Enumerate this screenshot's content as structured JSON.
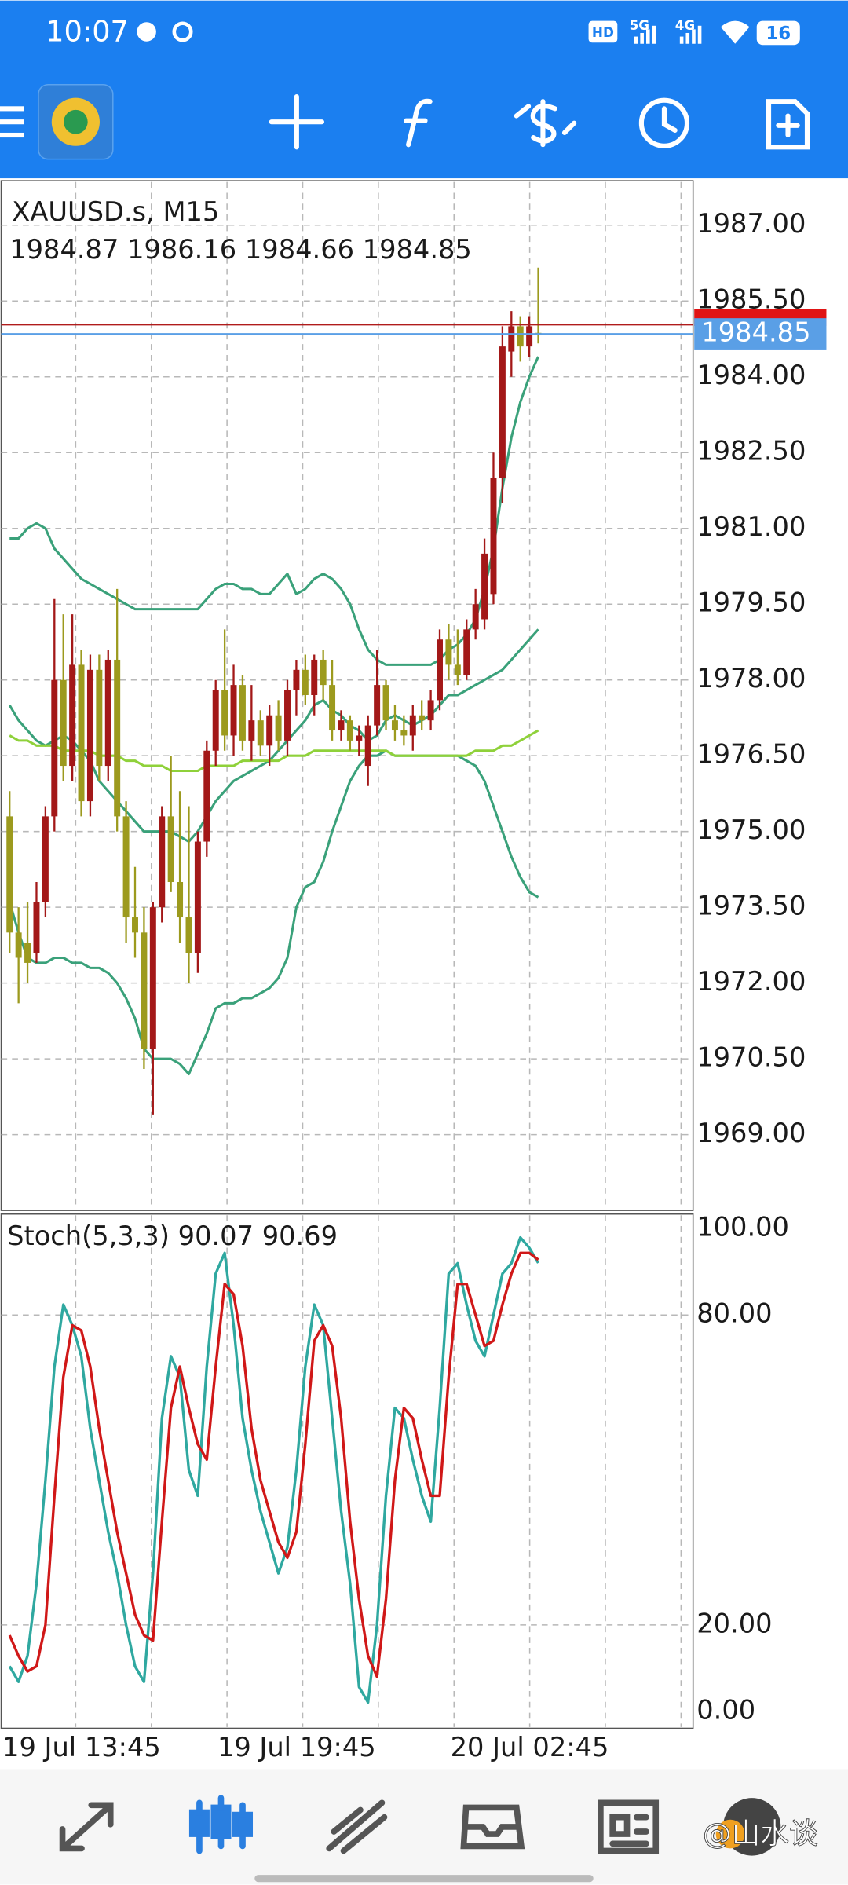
{
  "status_bar": {
    "time": "10:07",
    "hd": "HD",
    "network": [
      "5G",
      "4G"
    ],
    "battery": "16"
  },
  "chart_data": [
    {
      "type": "candlestick",
      "title": "XAUUSD.s, M15",
      "categories": [
        "19 Jul 13:45",
        null,
        null,
        null,
        null,
        null,
        null,
        null,
        null,
        null,
        null,
        null,
        null,
        null,
        null,
        null,
        null,
        null,
        null,
        null,
        null,
        null,
        null,
        null,
        "19 Jul 19:45",
        null,
        null,
        null,
        null,
        null,
        null,
        null,
        null,
        null,
        null,
        null,
        null,
        null,
        null,
        null,
        null,
        null,
        null,
        null,
        null,
        null,
        null,
        null,
        null,
        null,
        "20 Jul 02:45",
        null,
        null,
        null,
        null,
        null,
        null,
        null,
        null,
        null
      ],
      "open": [
        1975.3,
        1973.0,
        1972.8,
        1972.6,
        1973.6,
        1975.3,
        1978.0,
        1976.3,
        1978.3,
        1975.6,
        1978.2,
        1976.3,
        1978.4,
        1975.3,
        1973.3,
        1973.0,
        1970.7,
        1973.5,
        1975.3,
        1974.0,
        1973.3,
        1972.6,
        1974.8,
        1976.6,
        1977.8,
        1976.9,
        1977.9,
        1976.8,
        1977.2,
        1976.7,
        1977.3,
        1976.8,
        1977.8,
        1978.2,
        1977.7,
        1978.4,
        1977.9,
        1977.0,
        1977.2,
        1976.8,
        1976.3,
        1977.1,
        1977.9,
        1977.2,
        1977.0,
        1976.9,
        1977.3,
        1977.2,
        1977.6,
        1978.8,
        1978.3,
        1978.1,
        1979.0,
        1979.2,
        1979.7,
        1982.0,
        1984.5,
        1985.0,
        1984.6,
        1984.87
      ],
      "high": [
        1975.8,
        1973.5,
        1973.6,
        1974.0,
        1975.5,
        1979.6,
        1979.3,
        1979.3,
        1978.6,
        1978.5,
        1978.5,
        1978.6,
        1979.8,
        1975.6,
        1974.3,
        1973.5,
        1973.6,
        1975.5,
        1976.5,
        1975.8,
        1975.5,
        1975.0,
        1976.8,
        1978.0,
        1979.0,
        1978.3,
        1978.1,
        1977.9,
        1977.4,
        1977.5,
        1977.6,
        1978.0,
        1978.4,
        1978.5,
        1978.5,
        1978.6,
        1978.4,
        1977.4,
        1977.3,
        1977.1,
        1977.3,
        1978.6,
        1978.0,
        1977.5,
        1977.3,
        1977.5,
        1977.6,
        1977.8,
        1979.0,
        1979.1,
        1979.0,
        1979.2,
        1979.8,
        1980.8,
        1982.5,
        1985.0,
        1985.3,
        1985.2,
        1985.2,
        1986.16
      ],
      "low": [
        1972.6,
        1971.6,
        1972.0,
        1972.4,
        1973.3,
        1975.0,
        1976.0,
        1976.0,
        1975.3,
        1975.3,
        1976.0,
        1976.0,
        1975.0,
        1972.8,
        1972.5,
        1970.3,
        1969.4,
        1973.2,
        1973.8,
        1972.8,
        1972.0,
        1972.2,
        1974.5,
        1976.3,
        1976.6,
        1976.5,
        1976.6,
        1976.4,
        1976.5,
        1976.3,
        1976.6,
        1976.5,
        1977.3,
        1977.5,
        1977.3,
        1977.6,
        1976.8,
        1976.8,
        1976.6,
        1976.5,
        1975.9,
        1976.9,
        1977.0,
        1976.8,
        1976.7,
        1976.6,
        1977.0,
        1977.0,
        1977.4,
        1978.0,
        1977.9,
        1978.0,
        1978.8,
        1979.0,
        1979.5,
        1981.5,
        1984.0,
        1984.3,
        1984.4,
        1984.66
      ],
      "close": [
        1973.0,
        1972.5,
        1972.4,
        1973.6,
        1975.3,
        1978.0,
        1976.3,
        1978.3,
        1975.6,
        1978.2,
        1976.3,
        1978.4,
        1975.3,
        1973.3,
        1973.0,
        1970.7,
        1973.5,
        1975.3,
        1974.0,
        1973.3,
        1972.6,
        1974.8,
        1976.6,
        1977.8,
        1976.9,
        1977.9,
        1976.8,
        1977.2,
        1976.7,
        1977.3,
        1976.8,
        1977.8,
        1978.2,
        1977.7,
        1978.4,
        1977.9,
        1977.0,
        1977.2,
        1976.8,
        1976.9,
        1977.1,
        1977.9,
        1977.2,
        1977.0,
        1976.9,
        1977.3,
        1977.2,
        1977.6,
        1978.8,
        1978.3,
        1978.1,
        1979.0,
        1979.5,
        1980.5,
        1982.0,
        1984.6,
        1985.0,
        1984.6,
        1985.0,
        1984.85
      ],
      "up_color": "#a31818",
      "down_color": "#9c9a1e",
      "series": [
        {
          "color": "#3aa17a",
          "values": [
            1980.8,
            1980.8,
            1981.0,
            1981.1,
            1981.0,
            1980.6,
            1980.4,
            1980.2,
            1980.0,
            1979.9,
            1979.8,
            1979.7,
            1979.6,
            1979.5,
            1979.4,
            1979.4,
            1979.4,
            1979.4,
            1979.4,
            1979.4,
            1979.4,
            1979.4,
            1979.6,
            1979.8,
            1979.9,
            1979.9,
            1979.8,
            1979.8,
            1979.7,
            1979.7,
            1979.9,
            1980.1,
            1979.7,
            1979.8,
            1980.0,
            1980.1,
            1980.0,
            1979.8,
            1979.5,
            1979.0,
            1978.6,
            1978.4,
            1978.3,
            1978.3,
            1978.3,
            1978.3,
            1978.3,
            1978.3,
            1978.4,
            1978.6,
            1978.7,
            1978.9,
            1979.2,
            1979.8,
            1980.6,
            1981.8,
            1982.8,
            1983.5,
            1984.0,
            1984.4
          ]
        },
        {
          "color": "#3aa17a",
          "values": [
            1977.5,
            1977.2,
            1977.0,
            1976.8,
            1976.7,
            1976.8,
            1976.9,
            1976.8,
            1976.6,
            1976.4,
            1976.0,
            1975.8,
            1975.6,
            1975.4,
            1975.2,
            1975.0,
            1975.0,
            1975.0,
            1975.0,
            1974.9,
            1974.8,
            1975.0,
            1975.3,
            1975.6,
            1975.8,
            1976.0,
            1976.1,
            1976.2,
            1976.3,
            1976.4,
            1976.6,
            1976.8,
            1977.0,
            1977.2,
            1977.5,
            1977.6,
            1977.4,
            1977.3,
            1977.1,
            1977.0,
            1976.8,
            1976.9,
            1977.2,
            1977.3,
            1977.2,
            1977.1,
            1977.2,
            1977.3,
            1977.5,
            1977.7,
            1977.7,
            1977.8,
            1977.9,
            1978.0,
            1978.1,
            1978.2,
            1978.4,
            1978.6,
            1978.8,
            1979.0
          ]
        },
        {
          "color": "#3aa17a",
          "values": [
            1973.6,
            1973.0,
            1972.5,
            1972.4,
            1972.4,
            1972.5,
            1972.5,
            1972.4,
            1972.4,
            1972.3,
            1972.3,
            1972.2,
            1972.0,
            1971.7,
            1971.3,
            1970.7,
            1970.5,
            1970.5,
            1970.5,
            1970.4,
            1970.2,
            1970.6,
            1971.0,
            1971.5,
            1971.6,
            1971.6,
            1971.7,
            1971.7,
            1971.8,
            1971.9,
            1972.1,
            1972.5,
            1973.5,
            1973.9,
            1974.0,
            1974.4,
            1975.0,
            1975.5,
            1976.0,
            1976.3,
            1976.5,
            1976.5,
            1976.6,
            1976.5,
            1976.5,
            1976.5,
            1976.5,
            1976.5,
            1976.5,
            1976.5,
            1976.5,
            1976.4,
            1976.3,
            1976.0,
            1975.5,
            1975.0,
            1974.5,
            1974.1,
            1973.8,
            1973.7
          ]
        },
        {
          "color": "#8fd13a",
          "values": [
            1976.9,
            1976.8,
            1976.8,
            1976.7,
            1976.7,
            1976.7,
            1976.6,
            1976.6,
            1976.6,
            1976.6,
            1976.5,
            1976.5,
            1976.5,
            1976.4,
            1976.4,
            1976.3,
            1976.3,
            1976.3,
            1976.2,
            1976.2,
            1976.2,
            1976.2,
            1976.3,
            1976.3,
            1976.3,
            1976.3,
            1976.4,
            1976.4,
            1976.4,
            1976.4,
            1976.4,
            1976.5,
            1976.5,
            1976.5,
            1976.6,
            1976.6,
            1976.6,
            1976.6,
            1976.6,
            1976.6,
            1976.6,
            1976.6,
            1976.6,
            1976.5,
            1976.5,
            1976.5,
            1976.5,
            1976.5,
            1976.5,
            1976.5,
            1976.5,
            1976.5,
            1976.6,
            1976.6,
            1976.6,
            1976.7,
            1976.7,
            1976.8,
            1976.9,
            1977.0
          ]
        }
      ],
      "ask_price": 1985.03,
      "ask_color": "#b01c1c",
      "bid_color": "#5a9fe6",
      "ylim": [
        1967.5,
        1987.88
      ],
      "yticks": [
        {
          "value": 1969.0,
          "label": "1969.00"
        },
        {
          "value": 1970.5,
          "label": "1970.50"
        },
        {
          "value": 1972.0,
          "label": "1972.00"
        },
        {
          "value": 1973.5,
          "label": "1973.50"
        },
        {
          "value": 1975.0,
          "label": "1975.00"
        },
        {
          "value": 1976.5,
          "label": "1976.50"
        },
        {
          "value": 1978.0,
          "label": "1978.00"
        },
        {
          "value": 1979.5,
          "label": "1979.50"
        },
        {
          "value": 1981.0,
          "label": "1981.00"
        },
        {
          "value": 1982.5,
          "label": "1982.50"
        },
        {
          "value": 1984.0,
          "label": "1984.00"
        },
        {
          "value": 1985.5,
          "label": "1985.50"
        },
        {
          "value": 1987.0,
          "label": "1987.00"
        }
      ],
      "grid": true
    },
    {
      "type": "line",
      "title": "Stoch(5,3,3)",
      "series": [
        {
          "color": "#2fa8a0",
          "values": [
            12,
            9,
            14,
            28,
            48,
            70,
            82,
            78,
            72,
            58,
            48,
            38,
            30,
            20,
            12,
            9,
            30,
            60,
            72,
            68,
            50,
            45,
            70,
            88,
            92,
            78,
            60,
            50,
            42,
            36,
            30,
            35,
            50,
            70,
            82,
            78,
            60,
            42,
            28,
            8,
            5,
            20,
            45,
            62,
            60,
            52,
            45,
            40,
            62,
            88,
            90,
            82,
            75,
            72,
            80,
            88,
            90,
            95,
            93,
            90.07
          ]
        },
        {
          "color": "#d01818",
          "values": [
            18,
            14,
            11,
            12,
            20,
            45,
            68,
            78,
            77,
            70,
            58,
            48,
            38,
            30,
            22,
            18,
            17,
            40,
            62,
            70,
            62,
            55,
            52,
            70,
            86,
            84,
            74,
            58,
            48,
            42,
            36,
            33,
            38,
            55,
            75,
            78,
            74,
            60,
            40,
            25,
            14,
            10,
            25,
            48,
            62,
            60,
            52,
            45,
            45,
            68,
            86,
            86,
            80,
            74,
            75,
            82,
            88,
            92,
            92,
            90.69
          ]
        }
      ],
      "ylim": [
        0,
        100
      ],
      "yticks": [
        {
          "value": 0,
          "label": "0.00"
        },
        {
          "value": 20,
          "label": "20.00"
        },
        {
          "value": 80,
          "label": "80.00"
        },
        {
          "value": 100,
          "label": "100.00"
        }
      ],
      "grid": true
    }
  ],
  "watermark": "@山水谈"
}
